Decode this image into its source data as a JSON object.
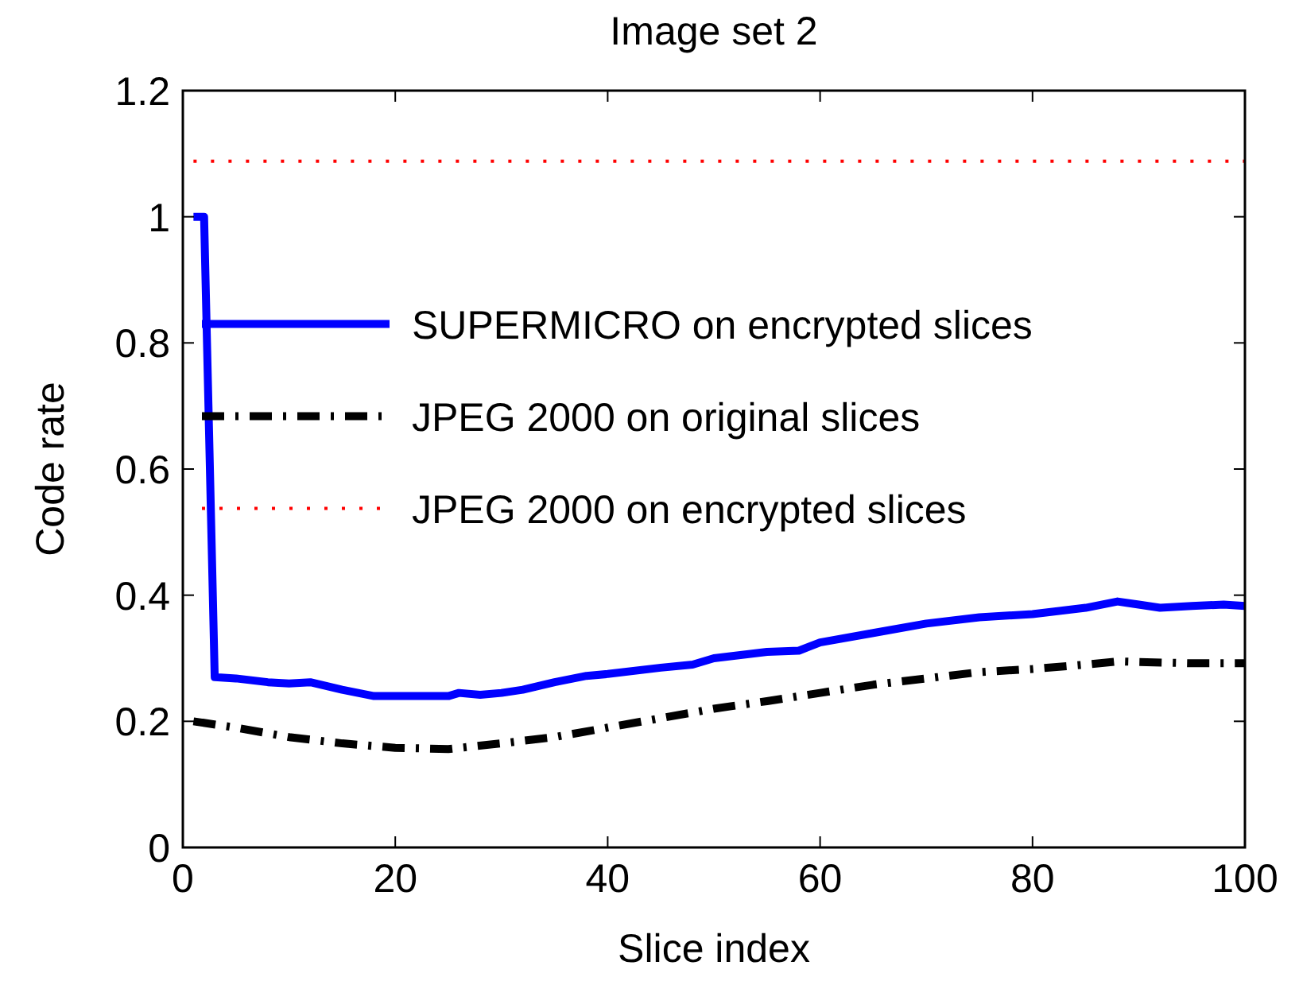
{
  "chart_data": {
    "type": "line",
    "title": "Image set 2",
    "xlabel": "Slice index",
    "ylabel": "Code rate",
    "xlim": [
      0,
      100
    ],
    "xticks": [
      0,
      20,
      40,
      60,
      80,
      100
    ],
    "ylim": [
      0,
      1.2
    ],
    "yticks": [
      0,
      0.2,
      0.4,
      0.6,
      0.8,
      1,
      1.2
    ],
    "grid": false,
    "legend": "left",
    "series": [
      {
        "name": "SUPERMICRO on encrypted slices",
        "color": "#0000ff",
        "line_style": "solid",
        "x": [
          1,
          2,
          3,
          5,
          8,
          10,
          12,
          15,
          18,
          20,
          25,
          26,
          28,
          30,
          32,
          35,
          38,
          40,
          45,
          48,
          50,
          55,
          58,
          60,
          65,
          70,
          75,
          80,
          85,
          88,
          90,
          92,
          95,
          98,
          100
        ],
        "values": [
          1,
          1,
          0.27,
          0.268,
          0.262,
          0.26,
          0.262,
          0.25,
          0.24,
          0.24,
          0.24,
          0.245,
          0.242,
          0.245,
          0.25,
          0.262,
          0.272,
          0.275,
          0.285,
          0.29,
          0.3,
          0.31,
          0.312,
          0.325,
          0.34,
          0.355,
          0.365,
          0.37,
          0.38,
          0.39,
          0.385,
          0.38,
          0.383,
          0.385,
          0.383
        ]
      },
      {
        "name": "JPEG 2000 on original slices",
        "color": "#000000",
        "line_style": "dashdot",
        "x": [
          1,
          5,
          10,
          15,
          20,
          25,
          30,
          35,
          40,
          45,
          50,
          55,
          60,
          65,
          70,
          75,
          80,
          85,
          88,
          90,
          95,
          100
        ],
        "values": [
          0.2,
          0.19,
          0.175,
          0.165,
          0.158,
          0.156,
          0.165,
          0.175,
          0.19,
          0.205,
          0.22,
          0.232,
          0.245,
          0.258,
          0.268,
          0.278,
          0.283,
          0.29,
          0.295,
          0.294,
          0.292,
          0.292
        ]
      },
      {
        "name": "JPEG 2000 on encrypted slices",
        "color": "#ff0000",
        "line_style": "dotted",
        "x": [
          1,
          100
        ],
        "values": [
          1.088,
          1.088
        ]
      }
    ]
  }
}
